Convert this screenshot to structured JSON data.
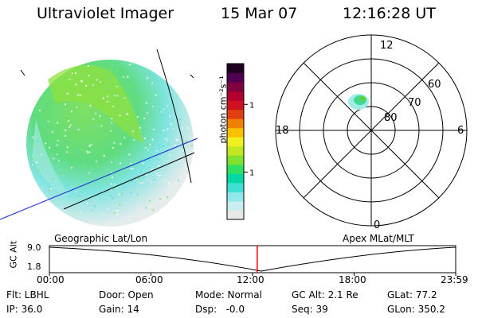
{
  "header": {
    "instrument": "Ultraviolet Imager",
    "date": "15 Mar 07",
    "time": "12:16:28 UT"
  },
  "colorbar": {
    "label": "photon cm⁻²s⁻¹",
    "ticks": [
      {
        "label": "100",
        "value": 100
      },
      {
        "label": "10",
        "value": 10
      }
    ],
    "colors": [
      "#e8e8e8",
      "#c8eef0",
      "#90e8e8",
      "#40e0d0",
      "#00d8a8",
      "#30e060",
      "#80e030",
      "#c0e820",
      "#f0f020",
      "#f8c000",
      "#f08000",
      "#e04010",
      "#d01020",
      "#b00030",
      "#800040",
      "#500050",
      "#200020"
    ]
  },
  "polar_plot": {
    "mlt_labels": {
      "top": "12",
      "left": "18",
      "right": "6",
      "bottom": "0"
    },
    "lat_labels": [
      "60",
      "70",
      "80"
    ]
  },
  "timeline": {
    "left_label": "Geographic Lat/Lon",
    "right_label": "Apex MLat/MLT",
    "y_axis_label": "GC Alt",
    "y_ticks": [
      "9.0",
      "1.8"
    ],
    "x_ticks": [
      "00:00",
      "06:00",
      "12:00",
      "18:00",
      "23:59"
    ],
    "current_fraction": 0.5115
  },
  "status": {
    "row1": [
      "Flt: LBHL",
      "Door: Open",
      "Mode: Normal",
      "GC Alt: 2.1 Re",
      "GLat: 77.2"
    ],
    "row2": [
      "IP: 36.0",
      "Gain: 14",
      "Dsp:   -0.0",
      "Seq: 39",
      "GLon: 350.2"
    ]
  }
}
